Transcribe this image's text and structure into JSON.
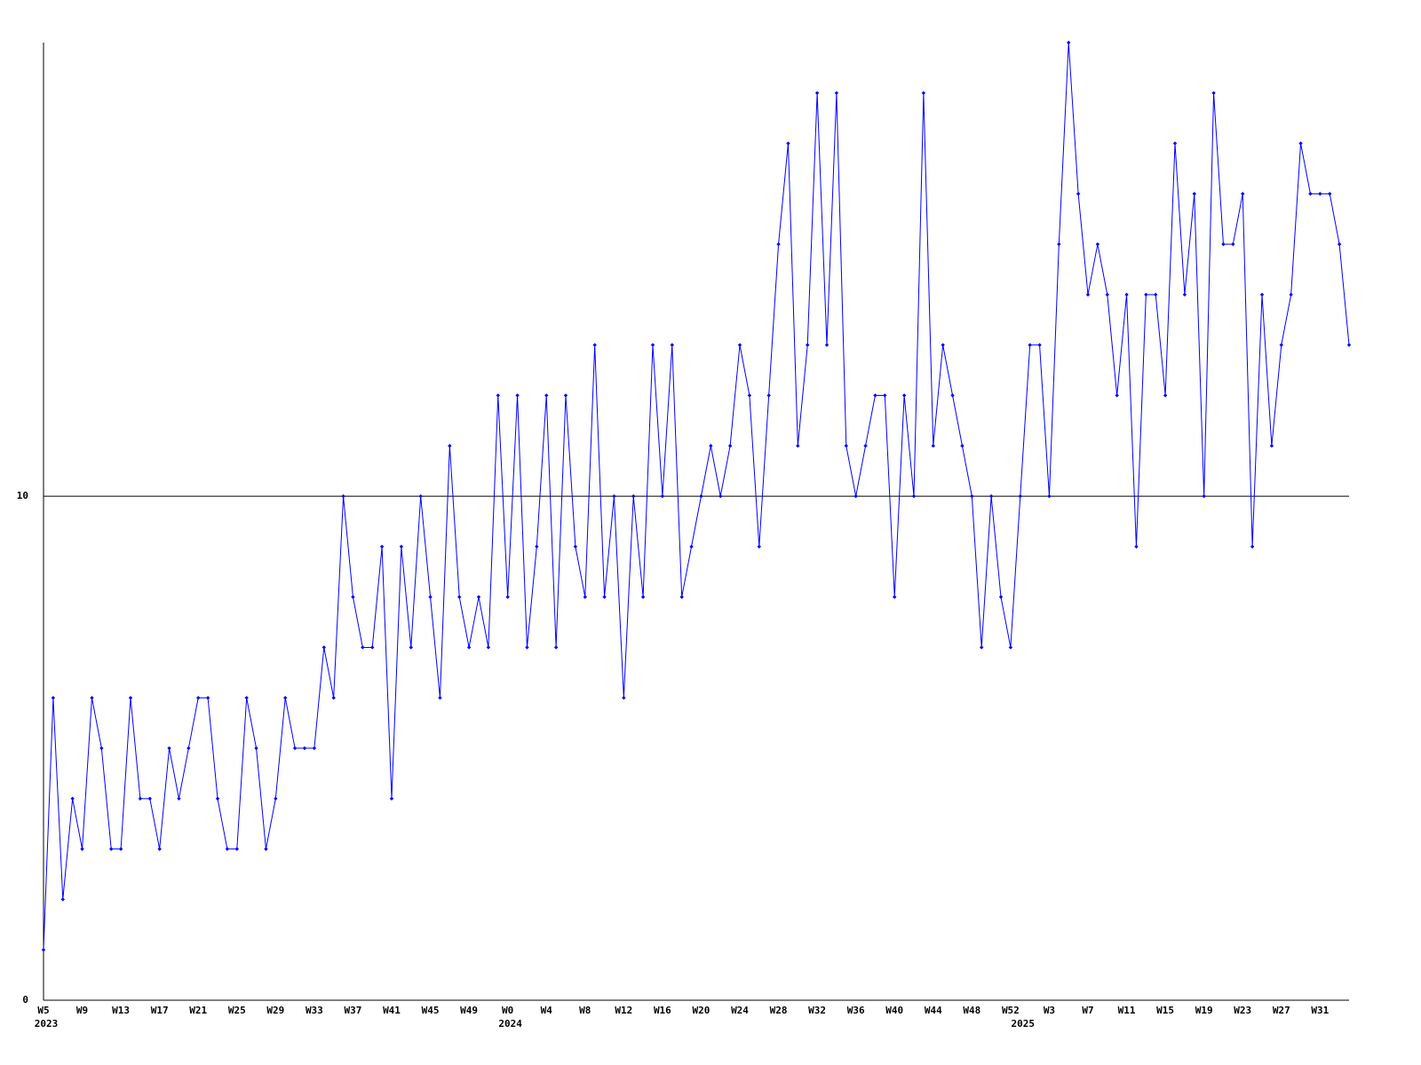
{
  "chart_data": {
    "type": "line",
    "color": "#0000ff",
    "grid": true,
    "ylim": [
      0,
      19
    ],
    "yticks": [
      0,
      10
    ],
    "categories": [
      "W5",
      null,
      null,
      null,
      "W9",
      null,
      null,
      null,
      "W13",
      null,
      null,
      null,
      "W17",
      null,
      null,
      null,
      "W21",
      null,
      null,
      null,
      "W25",
      null,
      null,
      null,
      "W29",
      null,
      null,
      null,
      "W33",
      null,
      null,
      null,
      "W37",
      null,
      null,
      null,
      "W41",
      null,
      null,
      null,
      "W45",
      null,
      null,
      null,
      "W49",
      null,
      null,
      null,
      "W0",
      null,
      null,
      null,
      "W4",
      null,
      null,
      null,
      "W8",
      null,
      null,
      null,
      "W12",
      null,
      null,
      null,
      "W16",
      null,
      null,
      null,
      "W20",
      null,
      null,
      null,
      "W24",
      null,
      null,
      null,
      "W28",
      null,
      null,
      null,
      "W32",
      null,
      null,
      null,
      "W36",
      null,
      null,
      null,
      "W40",
      null,
      null,
      null,
      "W44",
      null,
      null,
      null,
      "W48",
      null,
      null,
      null,
      "W52",
      null,
      null,
      null,
      "W3",
      null,
      null,
      null,
      "W7",
      null,
      null,
      null,
      "W11",
      null,
      null,
      null,
      "W15",
      null,
      null,
      null,
      "W19",
      null,
      null,
      null,
      "W23",
      null,
      null,
      null,
      "W27",
      null,
      null,
      null,
      "W31",
      null,
      null,
      null
    ],
    "year_categories": [
      "2023",
      null,
      null,
      null,
      null,
      null,
      null,
      null,
      null,
      null,
      null,
      null,
      null,
      null,
      null,
      null,
      null,
      null,
      null,
      null,
      null,
      null,
      null,
      null,
      null,
      null,
      null,
      null,
      null,
      null,
      null,
      null,
      null,
      null,
      null,
      null,
      null,
      null,
      null,
      null,
      null,
      null,
      null,
      null,
      null,
      null,
      null,
      null,
      "2024",
      null,
      null,
      null,
      null,
      null,
      null,
      null,
      null,
      null,
      null,
      null,
      null,
      null,
      null,
      null,
      null,
      null,
      null,
      null,
      null,
      null,
      null,
      null,
      null,
      null,
      null,
      null,
      null,
      null,
      null,
      null,
      null,
      null,
      null,
      null,
      null,
      null,
      null,
      null,
      null,
      null,
      null,
      null,
      null,
      null,
      null,
      null,
      null,
      null,
      null,
      null,
      null,
      "2025",
      null,
      null,
      null,
      null,
      null,
      null,
      null,
      null,
      null,
      null,
      null,
      null,
      null,
      null,
      null,
      null,
      null,
      null,
      null,
      null,
      null,
      null,
      null,
      null,
      null,
      null,
      null,
      null,
      null,
      null,
      null,
      null,
      null,
      null
    ],
    "values": [
      1,
      6,
      2,
      4,
      3,
      6,
      5,
      3,
      3,
      6,
      4,
      4,
      3,
      5,
      4,
      5,
      6,
      6,
      4,
      3,
      3,
      6,
      5,
      3,
      4,
      6,
      5,
      5,
      5,
      7,
      6,
      10,
      8,
      7,
      7,
      9,
      4,
      9,
      7,
      10,
      8,
      6,
      11,
      8,
      7,
      8,
      7,
      12,
      8,
      12,
      7,
      9,
      12,
      7,
      12,
      9,
      8,
      13,
      8,
      10,
      6,
      10,
      8,
      13,
      10,
      13,
      8,
      9,
      10,
      11,
      10,
      11,
      13,
      12,
      9,
      12,
      15,
      17,
      11,
      13,
      18,
      13,
      18,
      11,
      10,
      11,
      12,
      12,
      8,
      12,
      10,
      18,
      11,
      13,
      12,
      11,
      10,
      7,
      10,
      8,
      7,
      10,
      13,
      13,
      10,
      15,
      19,
      16,
      14,
      15,
      14,
      12,
      14,
      9,
      14,
      14,
      12,
      17,
      14,
      16,
      10,
      18,
      15,
      15,
      16,
      9,
      14,
      11,
      13,
      14,
      17,
      16,
      16,
      16,
      15,
      13
    ]
  }
}
